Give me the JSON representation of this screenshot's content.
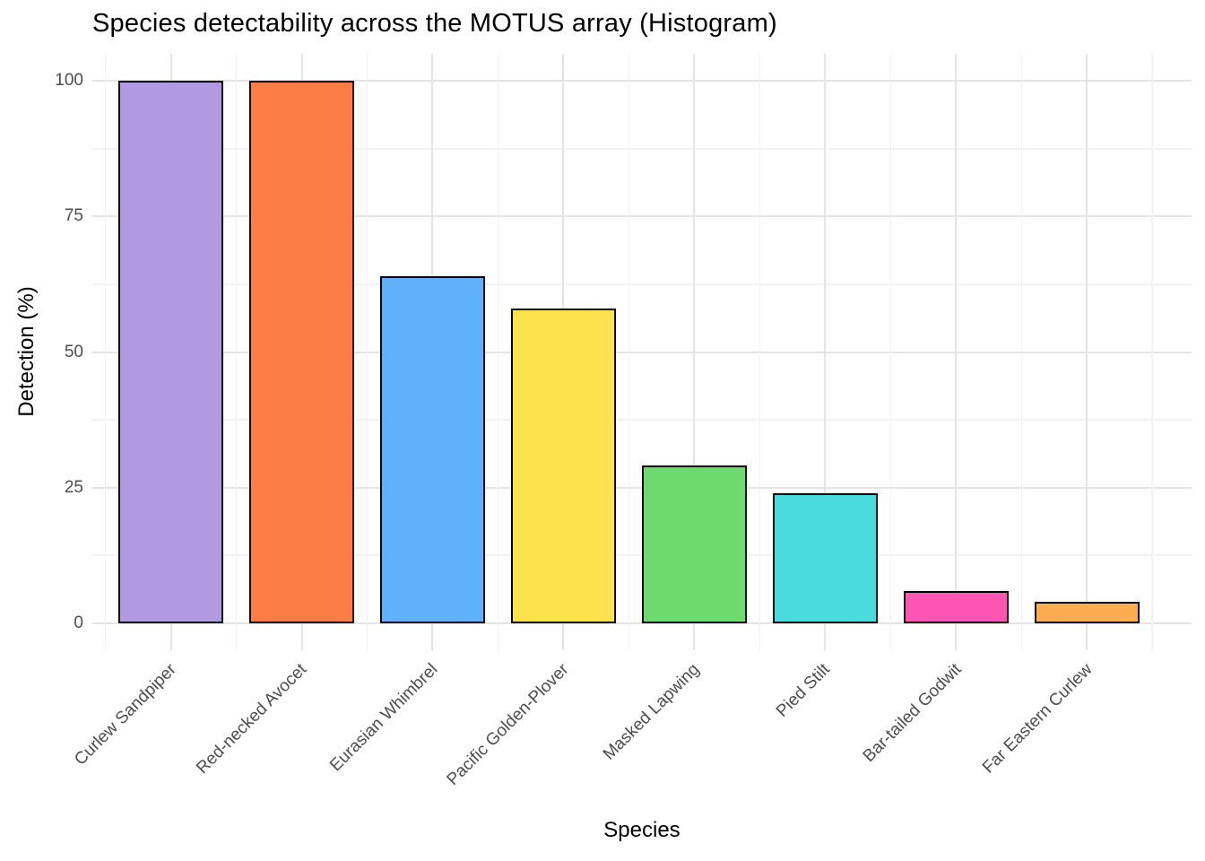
{
  "chart_data": {
    "type": "bar",
    "title": "Species detectability across the MOTUS array (Histogram)",
    "xlabel": "Species",
    "ylabel": "Detection (%)",
    "categories": [
      "Curlew Sandpiper",
      "Red-necked Avocet",
      "Eurasian Whimbrel",
      "Pacific Golden-Plover",
      "Masked Lapwing",
      "Pied Stilt",
      "Bar-tailed Godwit",
      "Far Eastern Curlew"
    ],
    "values": [
      100,
      100,
      64,
      58,
      29,
      24,
      6,
      4
    ],
    "bar_colors": [
      "#B29AE2",
      "#FC7D46",
      "#5FB1FB",
      "#FDE24D",
      "#6ED96D",
      "#49DCDC",
      "#FC55B4",
      "#FCAD51"
    ],
    "bar_stroke_color": "#000000",
    "y_ticks": [
      0,
      25,
      50,
      75,
      100
    ],
    "y_minor_ticks": [
      12.5,
      37.5,
      62.5,
      87.5
    ],
    "ylim": [
      0,
      100
    ],
    "legend_position": "none",
    "grid": "major and minor, horizontal and vertical",
    "background_color": "#FFFFFF",
    "grid_major_color": "#E4E4E4",
    "grid_minor_color": "#F2F2F2",
    "tick_label_color": "#4D4D4D",
    "title_color": "#000000",
    "x_label_rotation_deg": 45
  }
}
